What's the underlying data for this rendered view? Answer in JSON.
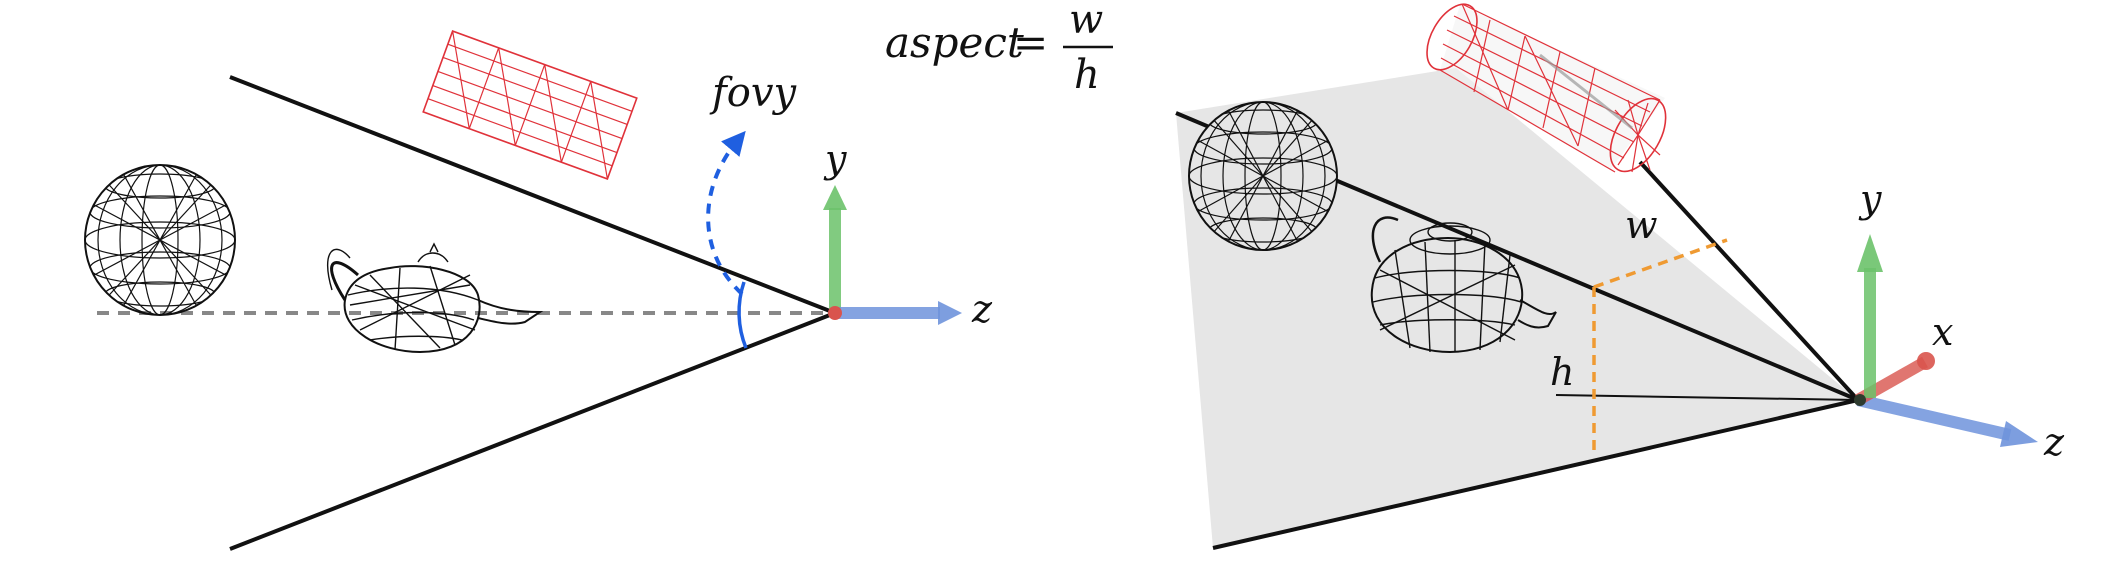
{
  "equation": {
    "lhs": "aspect",
    "equals": "=",
    "numerator": "w",
    "denominator": "h"
  },
  "left_view": {
    "fov_label": "fovy",
    "axis_y_label": "y",
    "axis_z_label": "z",
    "objects": [
      "sphere",
      "teapot",
      "cylinder"
    ]
  },
  "right_view": {
    "width_label": "w",
    "height_label": "h",
    "axis_y_label": "y",
    "axis_x_label": "x",
    "axis_z_label": "z",
    "objects": [
      "sphere",
      "teapot",
      "cylinder"
    ]
  },
  "colors": {
    "frustum_lines": "#111111",
    "near_plane_fill": "#e6e6e6",
    "fov_arc": "#1f5fe0",
    "dimension_lines": "#ef9a32",
    "axis_x": "#d9544d",
    "axis_y": "#6cc26a",
    "axis_z": "#6f93dc",
    "wireframe_black": "#111111",
    "wireframe_red": "#e0323a",
    "center_line": "#888888"
  }
}
